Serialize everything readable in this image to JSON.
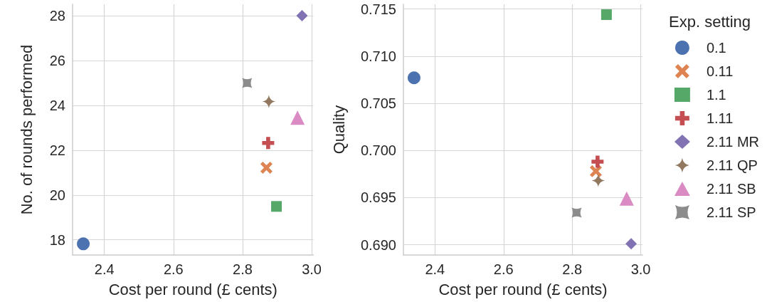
{
  "chart_data": [
    {
      "type": "scatter",
      "xlabel": "Cost per round (£ cents)",
      "ylabel": "No. of rounds performed",
      "xlim": [
        2.308,
        3.005
      ],
      "ylim": [
        17.32,
        28.51
      ],
      "xticks": [
        2.4,
        2.6,
        2.8,
        {
          "value": 3,
          "label": "3.0"
        }
      ],
      "yticks": [
        18,
        20,
        22,
        24,
        26,
        28
      ],
      "grid": true,
      "legend": false,
      "series": [
        {
          "color": "#4c72b0",
          "marker": "circle",
          "x": [
            2.339
          ],
          "values": [
            17.82
          ]
        },
        {
          "color": "#dd8452",
          "marker": "cross",
          "x": [
            2.869
          ],
          "values": [
            21.22
          ]
        },
        {
          "color": "#55a868",
          "marker": "square",
          "x": [
            2.898
          ],
          "values": [
            19.49
          ]
        },
        {
          "color": "#c44e52",
          "marker": "plus",
          "x": [
            2.874
          ],
          "values": [
            22.32
          ]
        },
        {
          "color": "#8172b3",
          "marker": "diamond",
          "x": [
            2.972
          ],
          "values": [
            28.0
          ]
        },
        {
          "color": "#937860",
          "marker": "star",
          "x": [
            2.876
          ],
          "values": [
            24.17
          ]
        },
        {
          "color": "#da8bc3",
          "marker": "triangle",
          "x": [
            2.959
          ],
          "values": [
            23.45
          ]
        },
        {
          "color": "#8c8c8c",
          "marker": "star4x",
          "x": [
            2.813
          ],
          "values": [
            25.0
          ]
        }
      ]
    },
    {
      "type": "scatter",
      "xlabel": "Cost per round (£ cents)",
      "ylabel": "Quality",
      "legend_title": "Exp. setting",
      "xlim": [
        2.308,
        3.005
      ],
      "ylim": [
        0.6889,
        0.7155
      ],
      "xticks": [
        2.4,
        2.6,
        2.8,
        {
          "value": 3,
          "label": "3.0"
        }
      ],
      "yticks": [
        {
          "value": 0.69,
          "label": "0.690"
        },
        0.695,
        {
          "value": 0.7,
          "label": "0.700"
        },
        0.705,
        {
          "value": 0.71,
          "label": "0.710"
        },
        0.715
      ],
      "grid": true,
      "legend": "right",
      "series": [
        {
          "name": "0.1",
          "color": "#4c72b0",
          "marker": "circle",
          "x": [
            2.339
          ],
          "values": [
            0.7077
          ]
        },
        {
          "name": "0.11",
          "color": "#dd8452",
          "marker": "cross",
          "x": [
            2.869
          ],
          "values": [
            0.6978
          ]
        },
        {
          "name": "1.1",
          "color": "#55a868",
          "marker": "square",
          "x": [
            2.9
          ],
          "values": [
            0.7144
          ]
        },
        {
          "name": "1.11",
          "color": "#c44e52",
          "marker": "plus",
          "x": [
            2.874
          ],
          "values": [
            0.6988
          ]
        },
        {
          "name": "2.11 MR",
          "color": "#8172b3",
          "marker": "diamond",
          "x": [
            2.972
          ],
          "values": [
            0.6901
          ]
        },
        {
          "name": "2.11 QP",
          "color": "#937860",
          "marker": "star",
          "x": [
            2.876
          ],
          "values": [
            0.6968
          ]
        },
        {
          "name": "2.11 SB",
          "color": "#da8bc3",
          "marker": "triangle",
          "x": [
            2.959
          ],
          "values": [
            0.6949
          ]
        },
        {
          "name": "2.11 SP",
          "color": "#8c8c8c",
          "marker": "star4x",
          "x": [
            2.813
          ],
          "values": [
            0.6934
          ]
        }
      ]
    }
  ]
}
